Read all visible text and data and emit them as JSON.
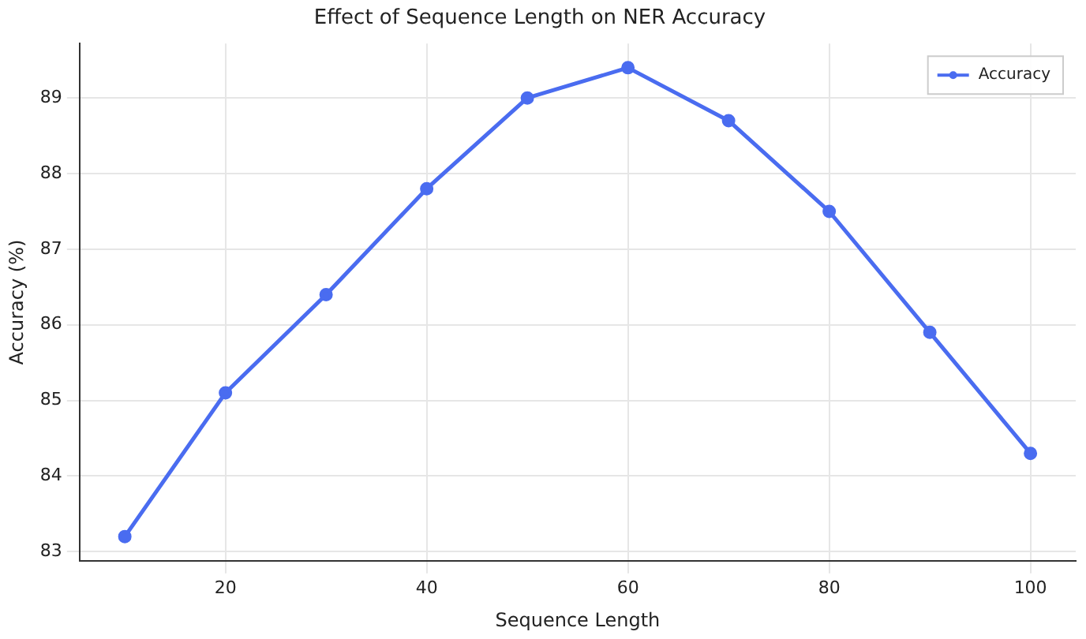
{
  "chart_data": {
    "type": "line",
    "title": "Effect of Sequence Length on NER Accuracy",
    "xlabel": "Sequence Length",
    "ylabel": "Accuracy (%)",
    "x": [
      10,
      20,
      30,
      40,
      50,
      60,
      70,
      80,
      90,
      100
    ],
    "series": [
      {
        "name": "Accuracy",
        "color": "#4a6cf0",
        "values": [
          83.2,
          85.1,
          86.4,
          87.8,
          89.0,
          89.4,
          88.7,
          87.5,
          85.9,
          84.3
        ]
      }
    ],
    "xlim": [
      5.5,
      104.5
    ],
    "xticks": [
      20,
      40,
      60,
      80,
      100
    ],
    "ylim": [
      82.88,
      89.72
    ],
    "yticks": [
      83,
      84,
      85,
      86,
      87,
      88,
      89
    ],
    "grid": true,
    "legend": "top right",
    "marker": "circle",
    "line_style": "solid"
  }
}
